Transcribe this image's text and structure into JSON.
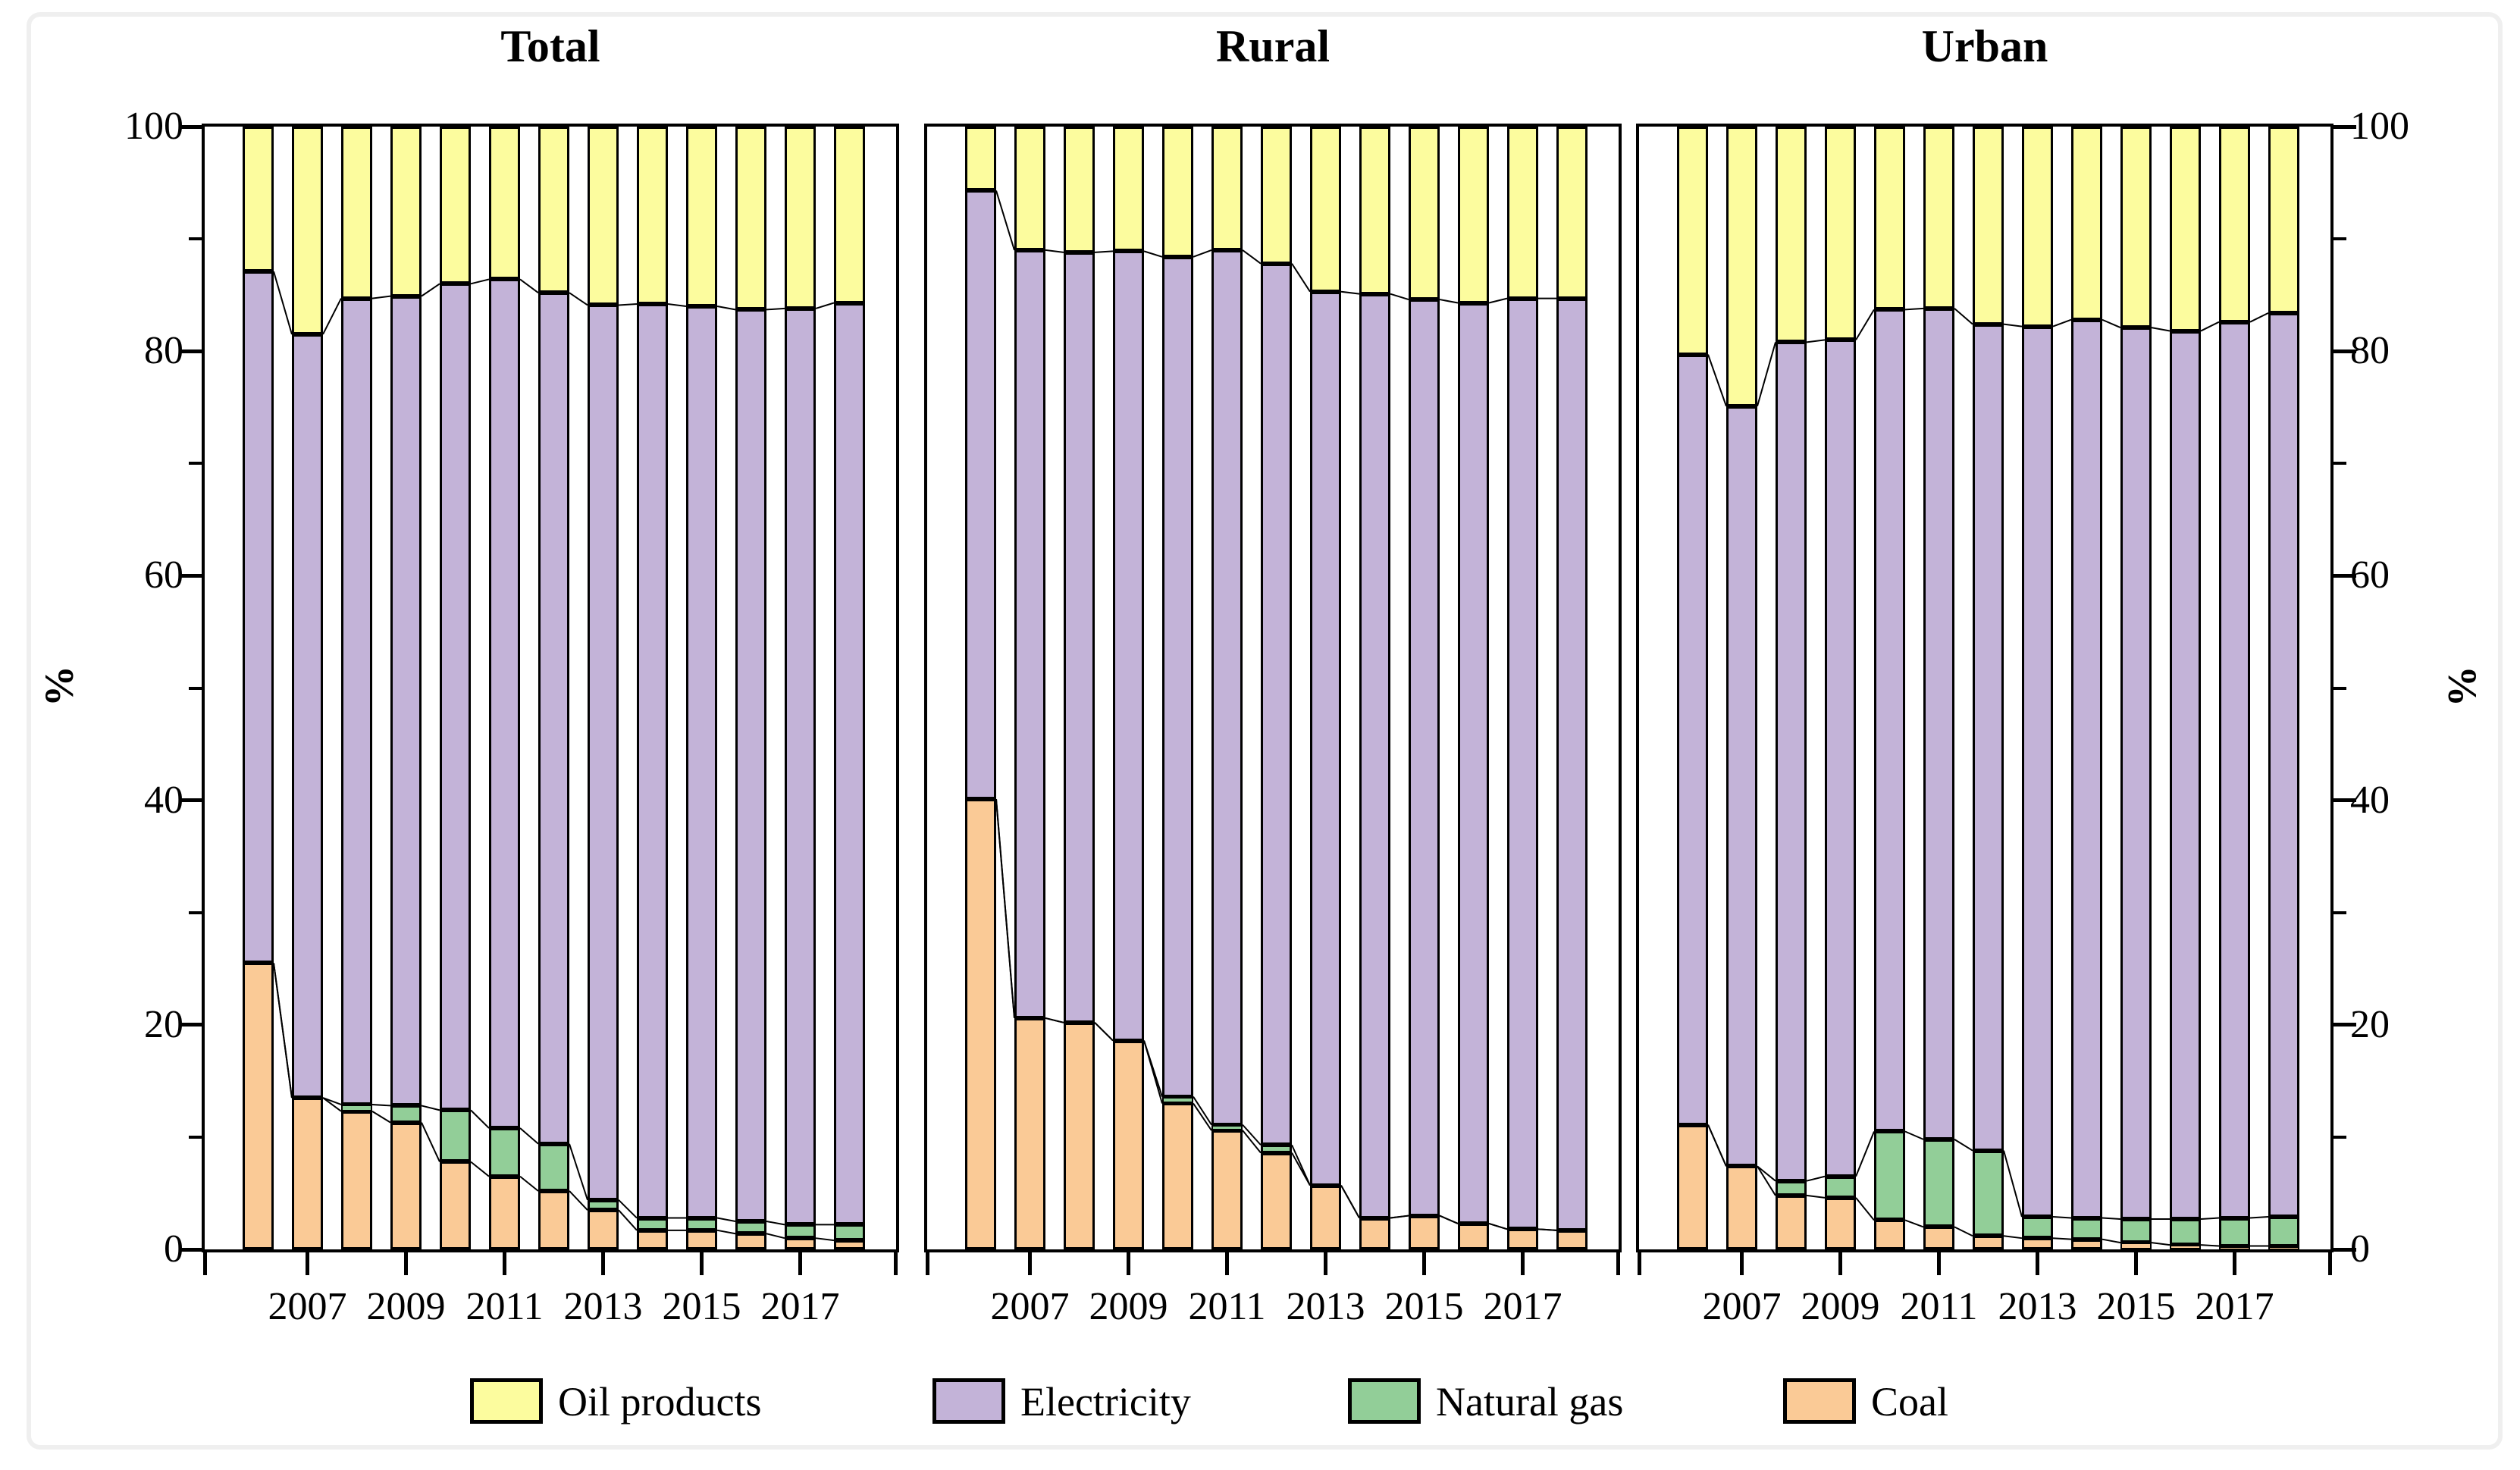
{
  "figure": {
    "y_axis_label_left": "%",
    "y_axis_label_right": "%",
    "y_tick_labels": [
      "0",
      "20",
      "40",
      "60",
      "80",
      "100"
    ],
    "y_minor_ticks": [
      10,
      30,
      50,
      70,
      90
    ],
    "x_tick_labels": [
      "2007",
      "2009",
      "2011",
      "2013",
      "2015",
      "2017"
    ]
  },
  "legend": {
    "items": [
      {
        "label": "Oil products",
        "color": "#FCFC9E"
      },
      {
        "label": "Electricity",
        "color": "#C3B3D8"
      },
      {
        "label": "Natural gas",
        "color": "#92CE98"
      },
      {
        "label": "Coal",
        "color": "#FACA96"
      }
    ]
  },
  "chart_data": [
    {
      "type": "bar",
      "stacked": true,
      "percent": true,
      "title": "Total",
      "x": [
        2006,
        2007,
        2008,
        2009,
        2010,
        2011,
        2012,
        2013,
        2014,
        2015,
        2016,
        2017,
        2018
      ],
      "xlabel": "",
      "ylabel": "%",
      "ylim": [
        0,
        100
      ],
      "yticks": [
        0,
        20,
        40,
        60,
        80,
        100
      ],
      "xtick_labels": [
        "2007",
        "2009",
        "2011",
        "2013",
        "2015",
        "2017"
      ],
      "grid": false,
      "legend_position": "bottom",
      "series": [
        {
          "name": "Coal",
          "color": "#FACA96",
          "values": [
            25.5,
            13.5,
            12.3,
            11.3,
            7.8,
            6.5,
            5.2,
            3.5,
            1.7,
            1.7,
            1.4,
            1.0,
            0.8
          ]
        },
        {
          "name": "Natural gas",
          "color": "#92CE98",
          "values": [
            0,
            0,
            0.6,
            1.5,
            4.6,
            4.3,
            4.2,
            0.9,
            1.1,
            1.1,
            1.1,
            1.2,
            1.4
          ]
        },
        {
          "name": "Electricity",
          "color": "#C3B3D8",
          "values": [
            61.6,
            68.0,
            71.8,
            72.1,
            73.6,
            75.6,
            75.8,
            79.7,
            81.4,
            81.2,
            81.2,
            81.6,
            82.1
          ]
        },
        {
          "name": "Oil products",
          "color": "#FCFC9E",
          "values": [
            12.9,
            18.5,
            15.3,
            15.1,
            14.0,
            13.6,
            14.8,
            15.9,
            15.8,
            16.0,
            16.3,
            16.2,
            15.7
          ]
        }
      ]
    },
    {
      "type": "bar",
      "stacked": true,
      "percent": true,
      "title": "Rural",
      "x": [
        2006,
        2007,
        2008,
        2009,
        2010,
        2011,
        2012,
        2013,
        2014,
        2015,
        2016,
        2017,
        2018
      ],
      "xlabel": "",
      "ylabel": "%",
      "ylim": [
        0,
        100
      ],
      "yticks": [
        0,
        20,
        40,
        60,
        80,
        100
      ],
      "xtick_labels": [
        "2007",
        "2009",
        "2011",
        "2013",
        "2015",
        "2017"
      ],
      "grid": false,
      "legend_position": "bottom",
      "series": [
        {
          "name": "Coal",
          "color": "#FACA96",
          "values": [
            40.1,
            20.6,
            20.2,
            18.6,
            13.0,
            10.6,
            8.6,
            5.7,
            2.8,
            3.0,
            2.3,
            1.8,
            1.7
          ]
        },
        {
          "name": "Natural gas",
          "color": "#92CE98",
          "values": [
            0,
            0,
            0,
            0,
            0.6,
            0.5,
            0.7,
            0,
            0,
            0,
            0,
            0,
            0
          ]
        },
        {
          "name": "Electricity",
          "color": "#C3B3D8",
          "values": [
            54.2,
            68.4,
            68.6,
            70.3,
            74.8,
            77.9,
            78.5,
            79.6,
            82.3,
            81.6,
            82.0,
            82.9,
            83.0
          ]
        },
        {
          "name": "Oil products",
          "color": "#FCFC9E",
          "values": [
            5.7,
            11.0,
            11.2,
            11.1,
            11.6,
            11.0,
            12.2,
            14.7,
            14.9,
            15.4,
            15.7,
            15.3,
            15.3
          ]
        }
      ]
    },
    {
      "type": "bar",
      "stacked": true,
      "percent": true,
      "title": "Urban",
      "x": [
        2006,
        2007,
        2008,
        2009,
        2010,
        2011,
        2012,
        2013,
        2014,
        2015,
        2016,
        2017,
        2018
      ],
      "xlabel": "",
      "ylabel": "%",
      "ylim": [
        0,
        100
      ],
      "yticks": [
        0,
        20,
        40,
        60,
        80,
        100
      ],
      "xtick_labels": [
        "2007",
        "2009",
        "2011",
        "2013",
        "2015",
        "2017"
      ],
      "grid": false,
      "legend_position": "bottom",
      "series": [
        {
          "name": "Coal",
          "color": "#FACA96",
          "values": [
            11.1,
            7.4,
            4.8,
            4.6,
            2.6,
            2.0,
            1.2,
            1.0,
            0.9,
            0.6,
            0.4,
            0.3,
            0.3
          ]
        },
        {
          "name": "Natural gas",
          "color": "#92CE98",
          "values": [
            0,
            0,
            1.3,
            1.9,
            7.9,
            7.8,
            7.6,
            1.9,
            1.9,
            2.1,
            2.3,
            2.5,
            2.6
          ]
        },
        {
          "name": "Electricity",
          "color": "#C3B3D8",
          "values": [
            68.6,
            67.7,
            74.7,
            74.5,
            73.2,
            74.0,
            73.6,
            79.3,
            80.0,
            79.4,
            79.1,
            79.8,
            80.5
          ]
        },
        {
          "name": "Oil products",
          "color": "#FCFC9E",
          "values": [
            20.3,
            24.9,
            19.2,
            19.0,
            16.3,
            16.2,
            17.6,
            17.8,
            17.2,
            17.9,
            18.2,
            17.4,
            16.6
          ]
        }
      ]
    }
  ]
}
